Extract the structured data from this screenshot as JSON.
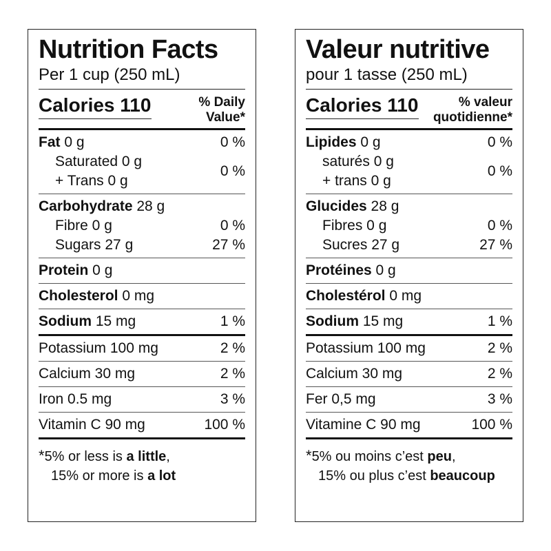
{
  "english": {
    "title": "Nutrition Facts",
    "serving": "Per 1 cup (250 mL)",
    "calories": "Calories 110",
    "dv_line1": "% Daily",
    "dv_line2": "Value*",
    "fat": {
      "label": "Fat",
      "amount": " 0 g",
      "pct": "0 %"
    },
    "saturated": "Saturated 0 g",
    "trans": "+ Trans 0 g",
    "sat_trans_pct": "0 %",
    "carbohydrate": {
      "label": "Carbohydrate",
      "amount": " 28 g"
    },
    "fibre": {
      "text": "Fibre 0 g",
      "pct": "0 %"
    },
    "sugars": {
      "text": "Sugars 27 g",
      "pct": "27 %"
    },
    "protein": {
      "label": "Protein",
      "amount": " 0 g"
    },
    "cholesterol": {
      "label": "Cholesterol",
      "amount": " 0 mg"
    },
    "sodium": {
      "label": "Sodium",
      "amount": " 15 mg",
      "pct": "1 %"
    },
    "potassium": {
      "text": "Potassium 100 mg",
      "pct": "2 %"
    },
    "calcium": {
      "text": "Calcium 30 mg",
      "pct": "2 %"
    },
    "iron": {
      "text": "Iron 0.5 mg",
      "pct": "3 %"
    },
    "vitamin_c": {
      "text": "Vitamin C 90 mg",
      "pct": "100 %"
    },
    "footnote": {
      "star": "*",
      "line1_pre": "5% or less is ",
      "line1_bold": "a little",
      "line1_post": ",",
      "line2_pre": "15% or more is ",
      "line2_bold": "a lot"
    }
  },
  "french": {
    "title": "Valeur nutritive",
    "serving": "pour 1 tasse (250 mL)",
    "calories": "Calories 110",
    "dv_line1": "% valeur",
    "dv_line2": "quotidienne*",
    "fat": {
      "label": "Lipides",
      "amount": " 0 g",
      "pct": "0 %"
    },
    "saturated": "saturés 0 g",
    "trans": "+ trans 0 g",
    "sat_trans_pct": "0 %",
    "carbohydrate": {
      "label": "Glucides",
      "amount": " 28 g"
    },
    "fibre": {
      "text": "Fibres 0 g",
      "pct": "0 %"
    },
    "sugars": {
      "text": "Sucres 27 g",
      "pct": "27 %"
    },
    "protein": {
      "label": "Protéines",
      "amount": " 0 g"
    },
    "cholesterol": {
      "label": "Cholestérol",
      "amount": " 0 mg"
    },
    "sodium": {
      "label": "Sodium",
      "amount": " 15 mg",
      "pct": "1 %"
    },
    "potassium": {
      "text": "Potassium 100 mg",
      "pct": "2 %"
    },
    "calcium": {
      "text": "Calcium 30 mg",
      "pct": "2 %"
    },
    "iron": {
      "text": "Fer 0,5 mg",
      "pct": "3 %"
    },
    "vitamin_c": {
      "text": "Vitamine C 90 mg",
      "pct": "100 %"
    },
    "footnote": {
      "star": "*",
      "line1_pre": "5% ou moins c’est ",
      "line1_bold": "peu",
      "line1_post": ",",
      "line2_pre": "15% ou plus c’est ",
      "line2_bold": "beaucoup"
    }
  }
}
